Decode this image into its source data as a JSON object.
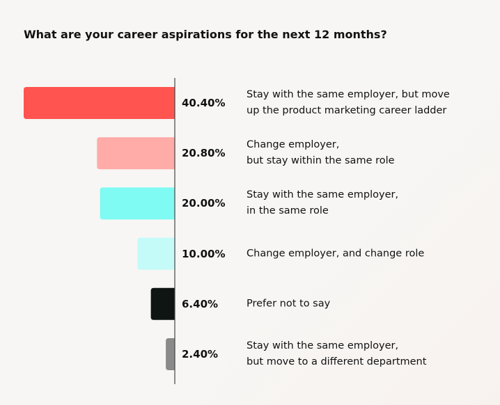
{
  "chart_data": {
    "type": "bar",
    "orientation": "horizontal",
    "title": "What are your career aspirations for the next 12 months?",
    "categories": [
      "Stay with the same employer, but move\nup the product marketing career ladder",
      "Change employer,\nbut stay within the same role",
      "Stay with the same employer,\nin the same role",
      "Change employer, and change role",
      "Prefer not to say",
      "Stay with the same employer,\nbut move to a different department"
    ],
    "values": [
      40.4,
      20.8,
      20.0,
      10.0,
      6.4,
      2.4
    ],
    "value_labels": [
      "40.40%",
      "20.80%",
      "20.00%",
      "10.00%",
      "6.40%",
      "2.40%"
    ],
    "colors": [
      "#ff5450",
      "#ffaba8",
      "#7ffbf3",
      "#c4fbf8",
      "#0f1513",
      "#8a8a8a"
    ],
    "xlim": [
      0,
      40.4
    ]
  }
}
